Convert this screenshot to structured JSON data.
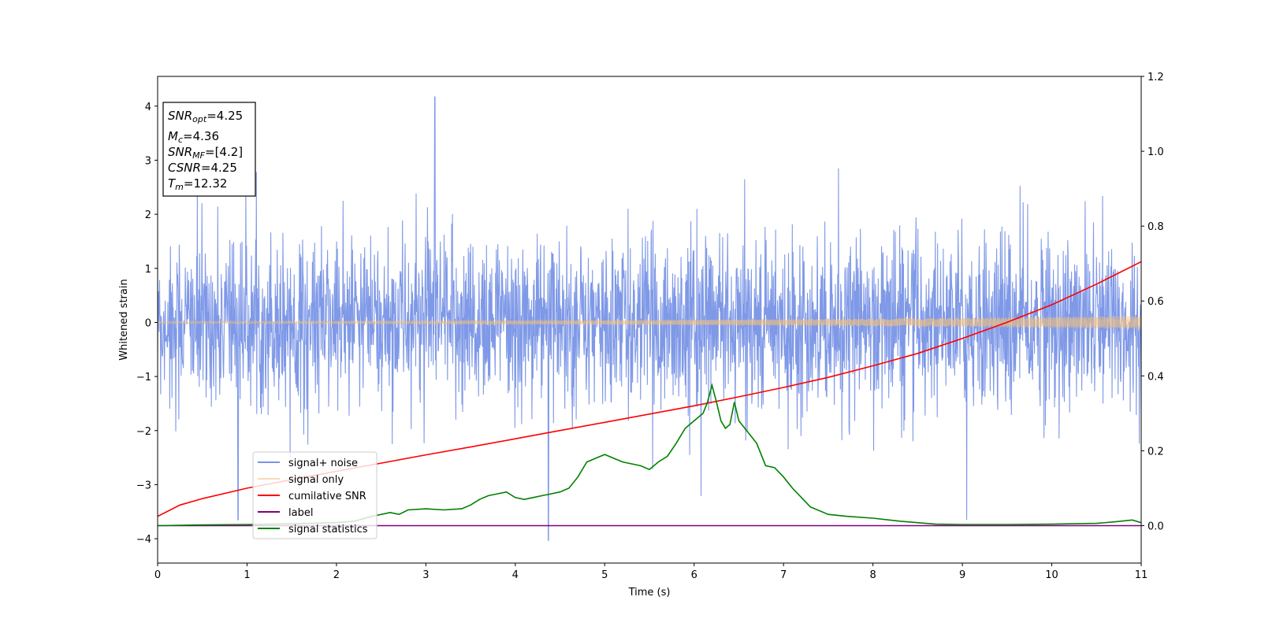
{
  "chart_data": {
    "type": "line",
    "title": "",
    "xlabel": "Time (s)",
    "ylabel": "Whitened strain",
    "xlim": [
      0,
      11
    ],
    "ylim": [
      -4.45,
      4.55
    ],
    "y2lim": [
      -0.1,
      1.2
    ],
    "x_ticks": [
      "0",
      "1",
      "2",
      "3",
      "4",
      "5",
      "6",
      "7",
      "8",
      "9",
      "10",
      "11"
    ],
    "y_ticks": [
      "−4",
      "−3",
      "−2",
      "−1",
      "0",
      "1",
      "2",
      "3",
      "4"
    ],
    "y2_ticks": [
      "0.0",
      "0.2",
      "0.4",
      "0.6",
      "0.8",
      "1.0",
      "1.2"
    ],
    "grid": false,
    "legend_position": "lower-left",
    "annotation": {
      "snr_opt": {
        "main": "SNR",
        "sub": "opt",
        "value": "=4.25"
      },
      "mc": {
        "main": "M",
        "sub": "c",
        "value": "=4.36"
      },
      "snr_mf": {
        "main": "SNR",
        "sub": "MF",
        "value": "=[4.2]"
      },
      "csnr": {
        "main": "CSNR",
        "value": "=4.25"
      },
      "tm": {
        "main": "T",
        "sub": "m",
        "value": "=12.32"
      }
    },
    "series": [
      {
        "name": "signal+ noise",
        "axis": "left",
        "color": "#7893e6",
        "kind": "noise",
        "center": 0,
        "typical_range": [
          -1.9,
          1.8
        ],
        "extremes": [
          [
            3.1,
            4.17
          ],
          [
            4.37,
            -4.03
          ],
          [
            9.05,
            -3.65
          ],
          [
            0.9,
            -3.65
          ]
        ]
      },
      {
        "name": "signal only",
        "axis": "left",
        "color": "#f5c27a",
        "kind": "chirp",
        "amplitude_start": 0.02,
        "amplitude_end": 0.12
      },
      {
        "name": "cumilative SNR",
        "axis": "right",
        "color": "#ff0000",
        "x": [
          0,
          0.25,
          0.5,
          1,
          1.5,
          2,
          2.5,
          3,
          3.5,
          4,
          4.5,
          5,
          5.5,
          6,
          6.5,
          7,
          7.5,
          8,
          8.5,
          9,
          9.5,
          10,
          10.5,
          11
        ],
        "values": [
          0.025,
          0.055,
          0.072,
          0.1,
          0.123,
          0.145,
          0.167,
          0.189,
          0.21,
          0.232,
          0.254,
          0.276,
          0.298,
          0.32,
          0.344,
          0.369,
          0.396,
          0.427,
          0.46,
          0.5,
          0.543,
          0.59,
          0.645,
          0.705
        ]
      },
      {
        "name": "label",
        "axis": "right",
        "color": "#800080",
        "x": [
          0,
          11
        ],
        "values": [
          0,
          0
        ]
      },
      {
        "name": "signal statistics",
        "axis": "right",
        "color": "#008000",
        "x": [
          0,
          0.5,
          1,
          1.5,
          2,
          2.2,
          2.4,
          2.6,
          2.7,
          2.8,
          3,
          3.2,
          3.4,
          3.5,
          3.6,
          3.7,
          3.8,
          3.9,
          4,
          4.1,
          4.2,
          4.3,
          4.4,
          4.5,
          4.6,
          4.7,
          4.8,
          4.9,
          5,
          5.1,
          5.2,
          5.3,
          5.4,
          5.5,
          5.6,
          5.7,
          5.8,
          5.9,
          6,
          6.1,
          6.15,
          6.2,
          6.25,
          6.3,
          6.35,
          6.4,
          6.45,
          6.5,
          6.6,
          6.7,
          6.8,
          6.9,
          7,
          7.1,
          7.2,
          7.3,
          7.5,
          7.7,
          8,
          8.3,
          8.7,
          9,
          9.5,
          10,
          10.5,
          10.7,
          10.9,
          11
        ],
        "values": [
          0.0,
          0.002,
          0.003,
          0.005,
          0.008,
          0.012,
          0.025,
          0.035,
          0.03,
          0.042,
          0.045,
          0.042,
          0.045,
          0.055,
          0.07,
          0.08,
          0.085,
          0.09,
          0.075,
          0.07,
          0.075,
          0.08,
          0.085,
          0.09,
          0.1,
          0.13,
          0.17,
          0.18,
          0.19,
          0.18,
          0.17,
          0.165,
          0.16,
          0.15,
          0.17,
          0.185,
          0.22,
          0.26,
          0.28,
          0.3,
          0.33,
          0.375,
          0.33,
          0.28,
          0.26,
          0.27,
          0.33,
          0.28,
          0.25,
          0.22,
          0.16,
          0.155,
          0.13,
          0.1,
          0.075,
          0.05,
          0.03,
          0.025,
          0.02,
          0.012,
          0.004,
          0.003,
          0.003,
          0.004,
          0.006,
          0.01,
          0.015,
          0.008
        ]
      }
    ]
  }
}
